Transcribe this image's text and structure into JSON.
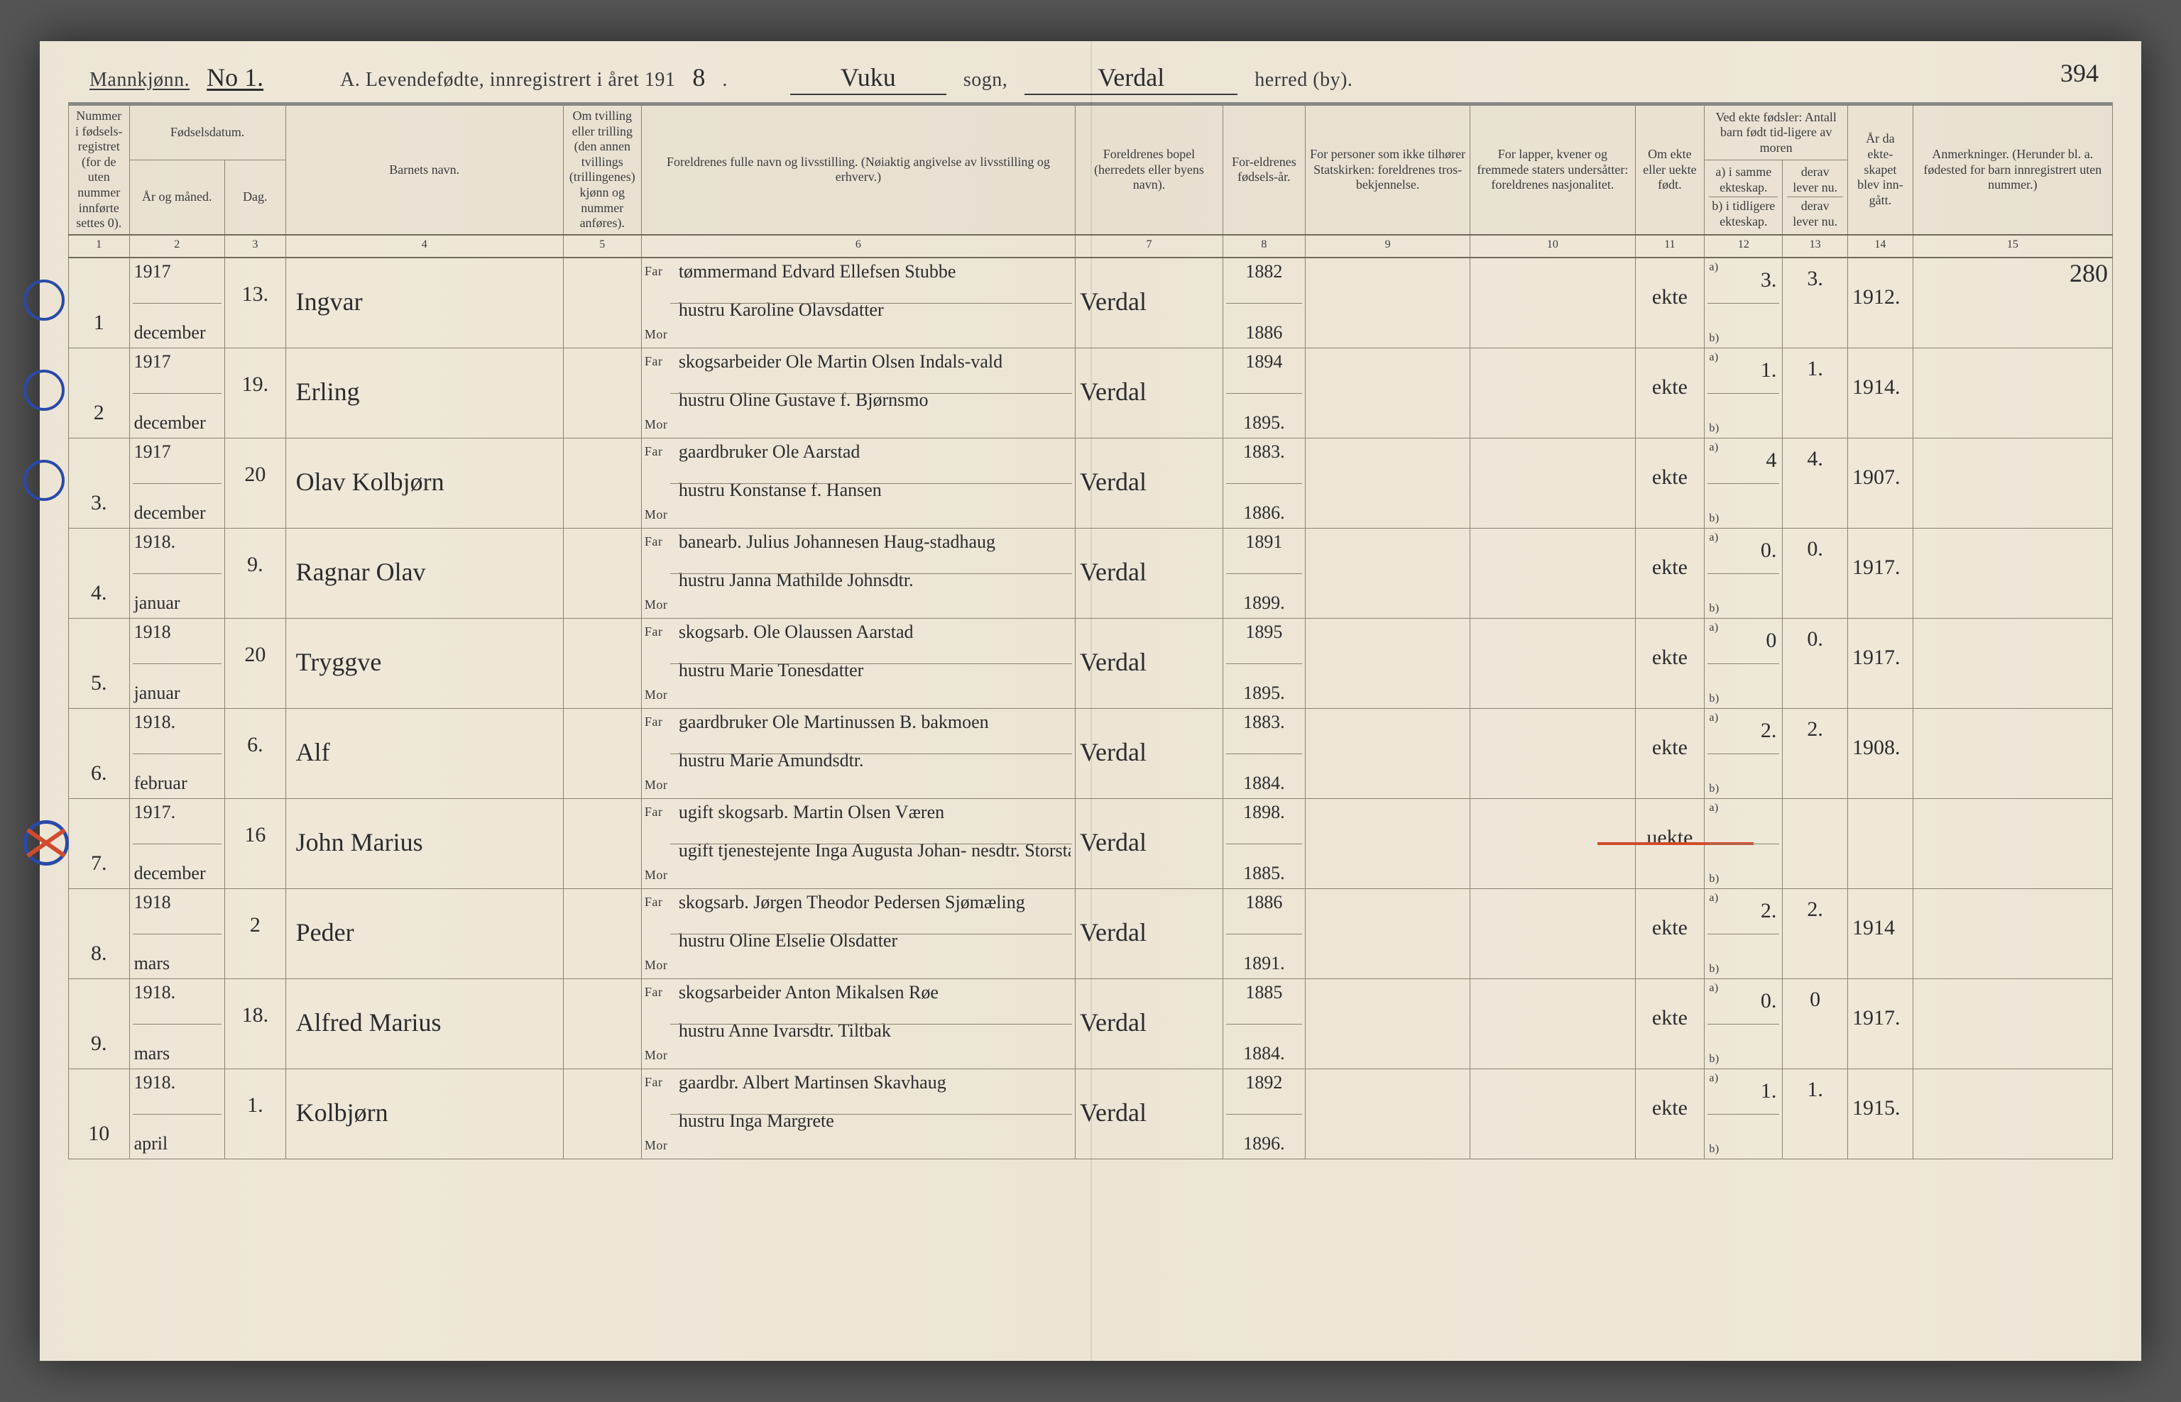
{
  "colors": {
    "paper": "#ece5d6",
    "ink": "#3b3b3b",
    "rule": "#8a8374",
    "blue_pencil": "#2a4aa8",
    "red_pencil": "#d14a2b"
  },
  "header": {
    "gender_label": "Mannkjønn.",
    "sheet_no": "No 1.",
    "title_prefix": "A.  Levendefødte, innregistrert i året 191",
    "year_suffix": "8",
    "sogn_value": "Vuku",
    "sogn_label": "sogn,",
    "herred_value": "Verdal",
    "herred_label": "herred (by).",
    "page_number": "394"
  },
  "columns": {
    "c1": "Nummer i fødsels-registret (for de uten nummer innførte settes 0).",
    "c2_top": "Fødselsdatum.",
    "c2a": "År og måned.",
    "c2b": "Dag.",
    "c4": "Barnets navn.",
    "c5": "Om tvilling eller trilling (den annen tvillings (trillingenes) kjønn og nummer anføres).",
    "c6": "Foreldrenes fulle navn og livsstilling. (Nøiaktig angivelse av livsstilling og erhverv.)",
    "c7": "Foreldrenes bopel (herredets eller byens navn).",
    "c8": "For-eldrenes fødsels-år.",
    "c9": "For personer som ikke tilhører Statskirken: foreldrenes tros-bekjennelse.",
    "c10": "For lapper, kvener og fremmede staters undersåtter: foreldrenes nasjonalitet.",
    "c11": "Om ekte eller uekte født.",
    "c12_top": "Ved ekte fødsler: Antall barn født tid-ligere av moren",
    "c12a": "a) i samme ekteskap.",
    "c12b": "b) i tidligere ekteskap.",
    "c13a": "derav lever nu.",
    "c13b": "derav lever nu.",
    "c14": "År da ekte-skapet blev inn-gått.",
    "c15": "Anmerkninger. (Herunder bl. a. fødested for barn innregistrert uten nummer.)",
    "far_label": "Far",
    "mor_label": "Mor",
    "a_label": "a)",
    "b_label": "b)"
  },
  "colnums": [
    "1",
    "2",
    "3",
    "4",
    "5",
    "6",
    "7",
    "8",
    "9",
    "10",
    "11",
    "12",
    "13",
    "14",
    "15"
  ],
  "margin_note_top_right": "280",
  "rows": [
    {
      "mark": "circle",
      "num": "1",
      "year": "1917",
      "month": "december",
      "day": "13.",
      "name": "Ingvar",
      "far": "tømmermand Edvard Ellefsen Stubbe",
      "mor": "hustru Karoline Olavsdatter",
      "res": "Verdal",
      "pyr_f": "1882",
      "pyr_m": "1886",
      "leg": "ekte",
      "a": "3.",
      "lev": "3.",
      "mar": "1912."
    },
    {
      "mark": "circle",
      "num": "2",
      "year": "1917",
      "month": "december",
      "day": "19.",
      "name": "Erling",
      "far": "skogsarbeider Ole Martin Olsen Indals-vald",
      "mor": "hustru Oline Gustave f. Bjørnsmo",
      "res": "Verdal",
      "pyr_f": "1894",
      "pyr_m": "1895.",
      "leg": "ekte",
      "a": "1.",
      "lev": "1.",
      "mar": "1914."
    },
    {
      "mark": "circle",
      "num": "3.",
      "year": "1917",
      "month": "december",
      "day": "20",
      "name": "Olav Kolbjørn",
      "far": "gaardbruker Ole Aarstad",
      "mor": "hustru Konstanse f. Hansen",
      "res": "Verdal",
      "pyr_f": "1883.",
      "pyr_m": "1886.",
      "leg": "ekte",
      "a": "4",
      "lev": "4.",
      "mar": "1907."
    },
    {
      "mark": "",
      "num": "4.",
      "year": "1918.",
      "month": "januar",
      "day": "9.",
      "name": "Ragnar Olav",
      "far": "banearb. Julius Johannesen Haug-stadhaug",
      "mor": "hustru Janna Mathilde Johnsdtr.",
      "res": "Verdal",
      "pyr_f": "1891",
      "pyr_m": "1899.",
      "leg": "ekte",
      "a": "0.",
      "lev": "0.",
      "mar": "1917."
    },
    {
      "mark": "",
      "num": "5.",
      "year": "1918",
      "month": "januar",
      "day": "20",
      "name": "Tryggve",
      "far": "skogsarb. Ole Olaussen Aarstad",
      "mor": "hustru Marie Tonesdatter",
      "res": "Verdal",
      "pyr_f": "1895",
      "pyr_m": "1895.",
      "leg": "ekte",
      "a": "0",
      "lev": "0.",
      "mar": "1917."
    },
    {
      "mark": "",
      "num": "6.",
      "year": "1918.",
      "month": "februar",
      "day": "6.",
      "name": "Alf",
      "far": "gaardbruker Ole Martinussen B. bakmoen",
      "mor": "hustru Marie Amundsdtr.",
      "res": "Verdal",
      "pyr_f": "1883.",
      "pyr_m": "1884.",
      "leg": "ekte",
      "a": "2.",
      "lev": "2.",
      "mar": "1908."
    },
    {
      "mark": "circle-x",
      "num": "7.",
      "year": "1917.",
      "month": "december",
      "day": "16",
      "name": "John Marius",
      "far": "ugift skogsarb. Martin Olsen Væren",
      "mor": "ugift tjenestejente Inga Augusta Johan- nesdtr. Storstadaas",
      "res": "Verdal",
      "pyr_f": "1898.",
      "pyr_m": "1885.",
      "leg": "uekte",
      "a": "",
      "lev": "",
      "mar": "",
      "red_strike": true
    },
    {
      "mark": "",
      "num": "8.",
      "year": "1918",
      "month": "mars",
      "day": "2",
      "name": "Peder",
      "far": "skogsarb. Jørgen Theodor Pedersen Sjømæling",
      "mor": "hustru Oline Elselie Olsdatter",
      "res": "Verdal",
      "pyr_f": "1886",
      "pyr_m": "1891.",
      "leg": "ekte",
      "a": "2.",
      "lev": "2.",
      "mar": "1914"
    },
    {
      "mark": "",
      "num": "9.",
      "year": "1918.",
      "month": "mars",
      "day": "18.",
      "name": "Alfred Marius",
      "far": "skogsarbeider Anton Mikalsen Røe",
      "mor": "hustru Anne Ivarsdtr. Tiltbak",
      "res": "Verdal",
      "pyr_f": "1885",
      "pyr_m": "1884.",
      "leg": "ekte",
      "a": "0.",
      "lev": "0",
      "mar": "1917."
    },
    {
      "mark": "",
      "num": "10",
      "year": "1918.",
      "month": "april",
      "day": "1.",
      "name": "Kolbjørn",
      "far": "gaardbr. Albert Martinsen Skavhaug",
      "mor": "hustru Inga Margrete",
      "res": "Verdal",
      "pyr_f": "1892",
      "pyr_m": "1896.",
      "leg": "ekte",
      "a": "1.",
      "lev": "1.",
      "mar": "1915."
    }
  ]
}
